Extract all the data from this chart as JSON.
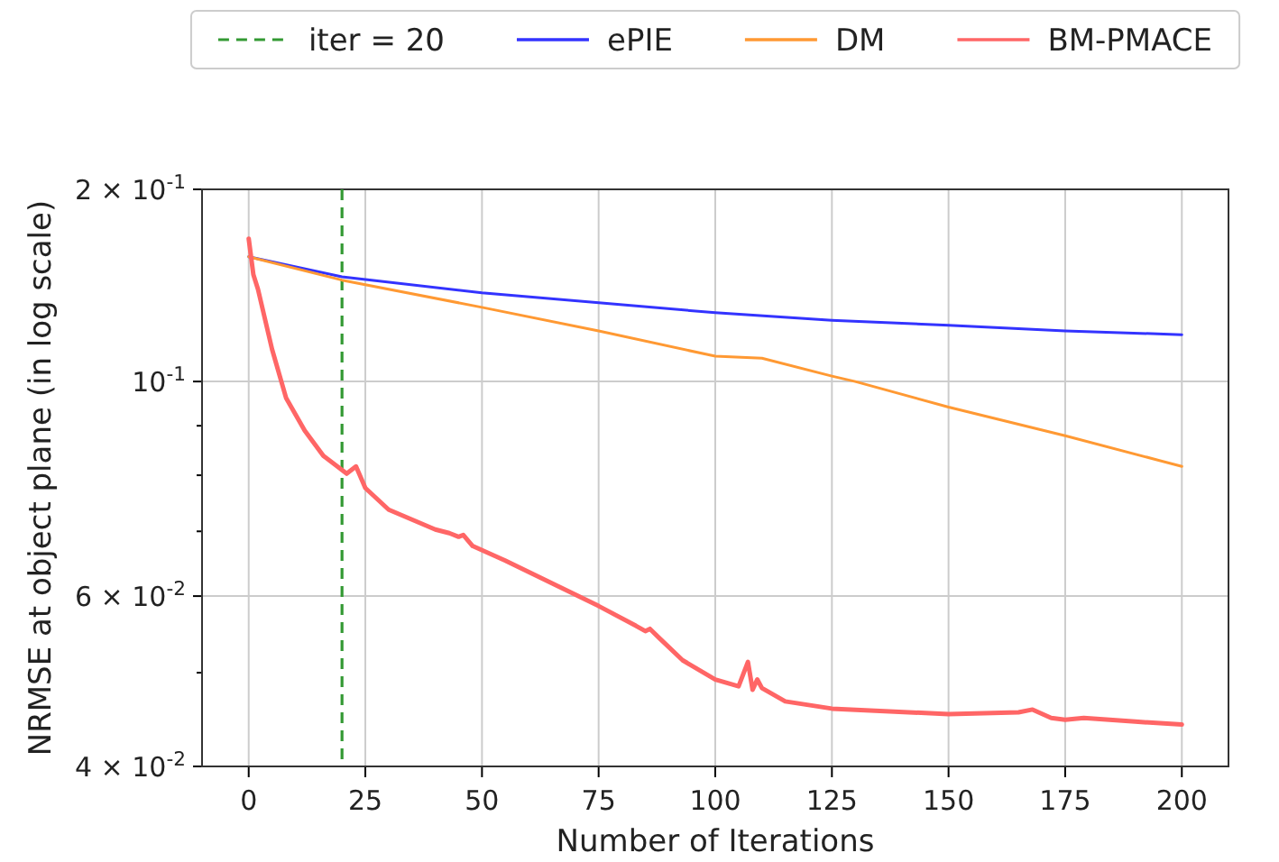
{
  "chart_data": {
    "type": "line",
    "xlabel": "Number of Iterations",
    "ylabel": "NRMSE at object plane (in log scale)",
    "log": "y",
    "xlim": [
      -10,
      210
    ],
    "xticks": [
      0,
      25,
      50,
      75,
      100,
      125,
      150,
      175,
      200
    ],
    "ylim": [
      0.04,
      0.158
    ],
    "yticks": [
      {
        "value": 0.04,
        "label": "4 × 10$^{-2}$"
      },
      {
        "value": 0.05,
        "label": null
      },
      {
        "value": 0.06,
        "label": "6 × 10$^{-2}$"
      },
      {
        "value": 0.07,
        "label": null
      },
      {
        "value": 0.08,
        "label": null
      },
      {
        "value": 0.09,
        "label": null
      },
      {
        "value": 0.1,
        "label": "10$^{-1}$"
      },
      {
        "value": 0.158,
        "label": "2 × 10$^{-1}$"
      }
    ],
    "grid": true,
    "legend": "top",
    "ref_lines": [
      {
        "axis": "x",
        "value": 20,
        "label": "iter = 20",
        "color": "#339933",
        "line_style": "dashed"
      }
    ],
    "series": [
      {
        "name": "ePIE",
        "color": "#3333ff",
        "x": [
          0,
          20,
          50,
          100,
          125,
          150,
          175,
          200
        ],
        "values": [
          0.1346,
          0.1283,
          0.1235,
          0.1178,
          0.1157,
          0.1143,
          0.1128,
          0.1118
        ]
      },
      {
        "name": "DM",
        "color": "#ff9933",
        "x": [
          0,
          20,
          50,
          75,
          100,
          110,
          125,
          130,
          150,
          175,
          200
        ],
        "values": [
          0.1346,
          0.1273,
          0.1193,
          0.1128,
          0.1062,
          0.1057,
          0.1013,
          0.1,
          0.0941,
          0.0879,
          0.0817
        ]
      },
      {
        "name": "BM-PMACE",
        "color": "#ff6666",
        "x": [
          0,
          1,
          2,
          5,
          8,
          12,
          16,
          20,
          21,
          23,
          25,
          30,
          40,
          43,
          45,
          46,
          48,
          55,
          75,
          83,
          85,
          86,
          88,
          93,
          100,
          105,
          107,
          108,
          109,
          110,
          115,
          125,
          150,
          165,
          168,
          172,
          175,
          179,
          190,
          200
        ],
        "values": [
          0.1405,
          0.129,
          0.1245,
          0.108,
          0.0962,
          0.089,
          0.0838,
          0.081,
          0.0803,
          0.0817,
          0.0776,
          0.0737,
          0.0703,
          0.0697,
          0.0691,
          0.0694,
          0.0676,
          0.0653,
          0.0586,
          0.0559,
          0.0552,
          0.0555,
          0.0543,
          0.0515,
          0.0492,
          0.0484,
          0.0513,
          0.048,
          0.0492,
          0.0482,
          0.0467,
          0.0459,
          0.0453,
          0.0455,
          0.0458,
          0.0449,
          0.0447,
          0.0449,
          0.0445,
          0.0442
        ]
      }
    ]
  }
}
